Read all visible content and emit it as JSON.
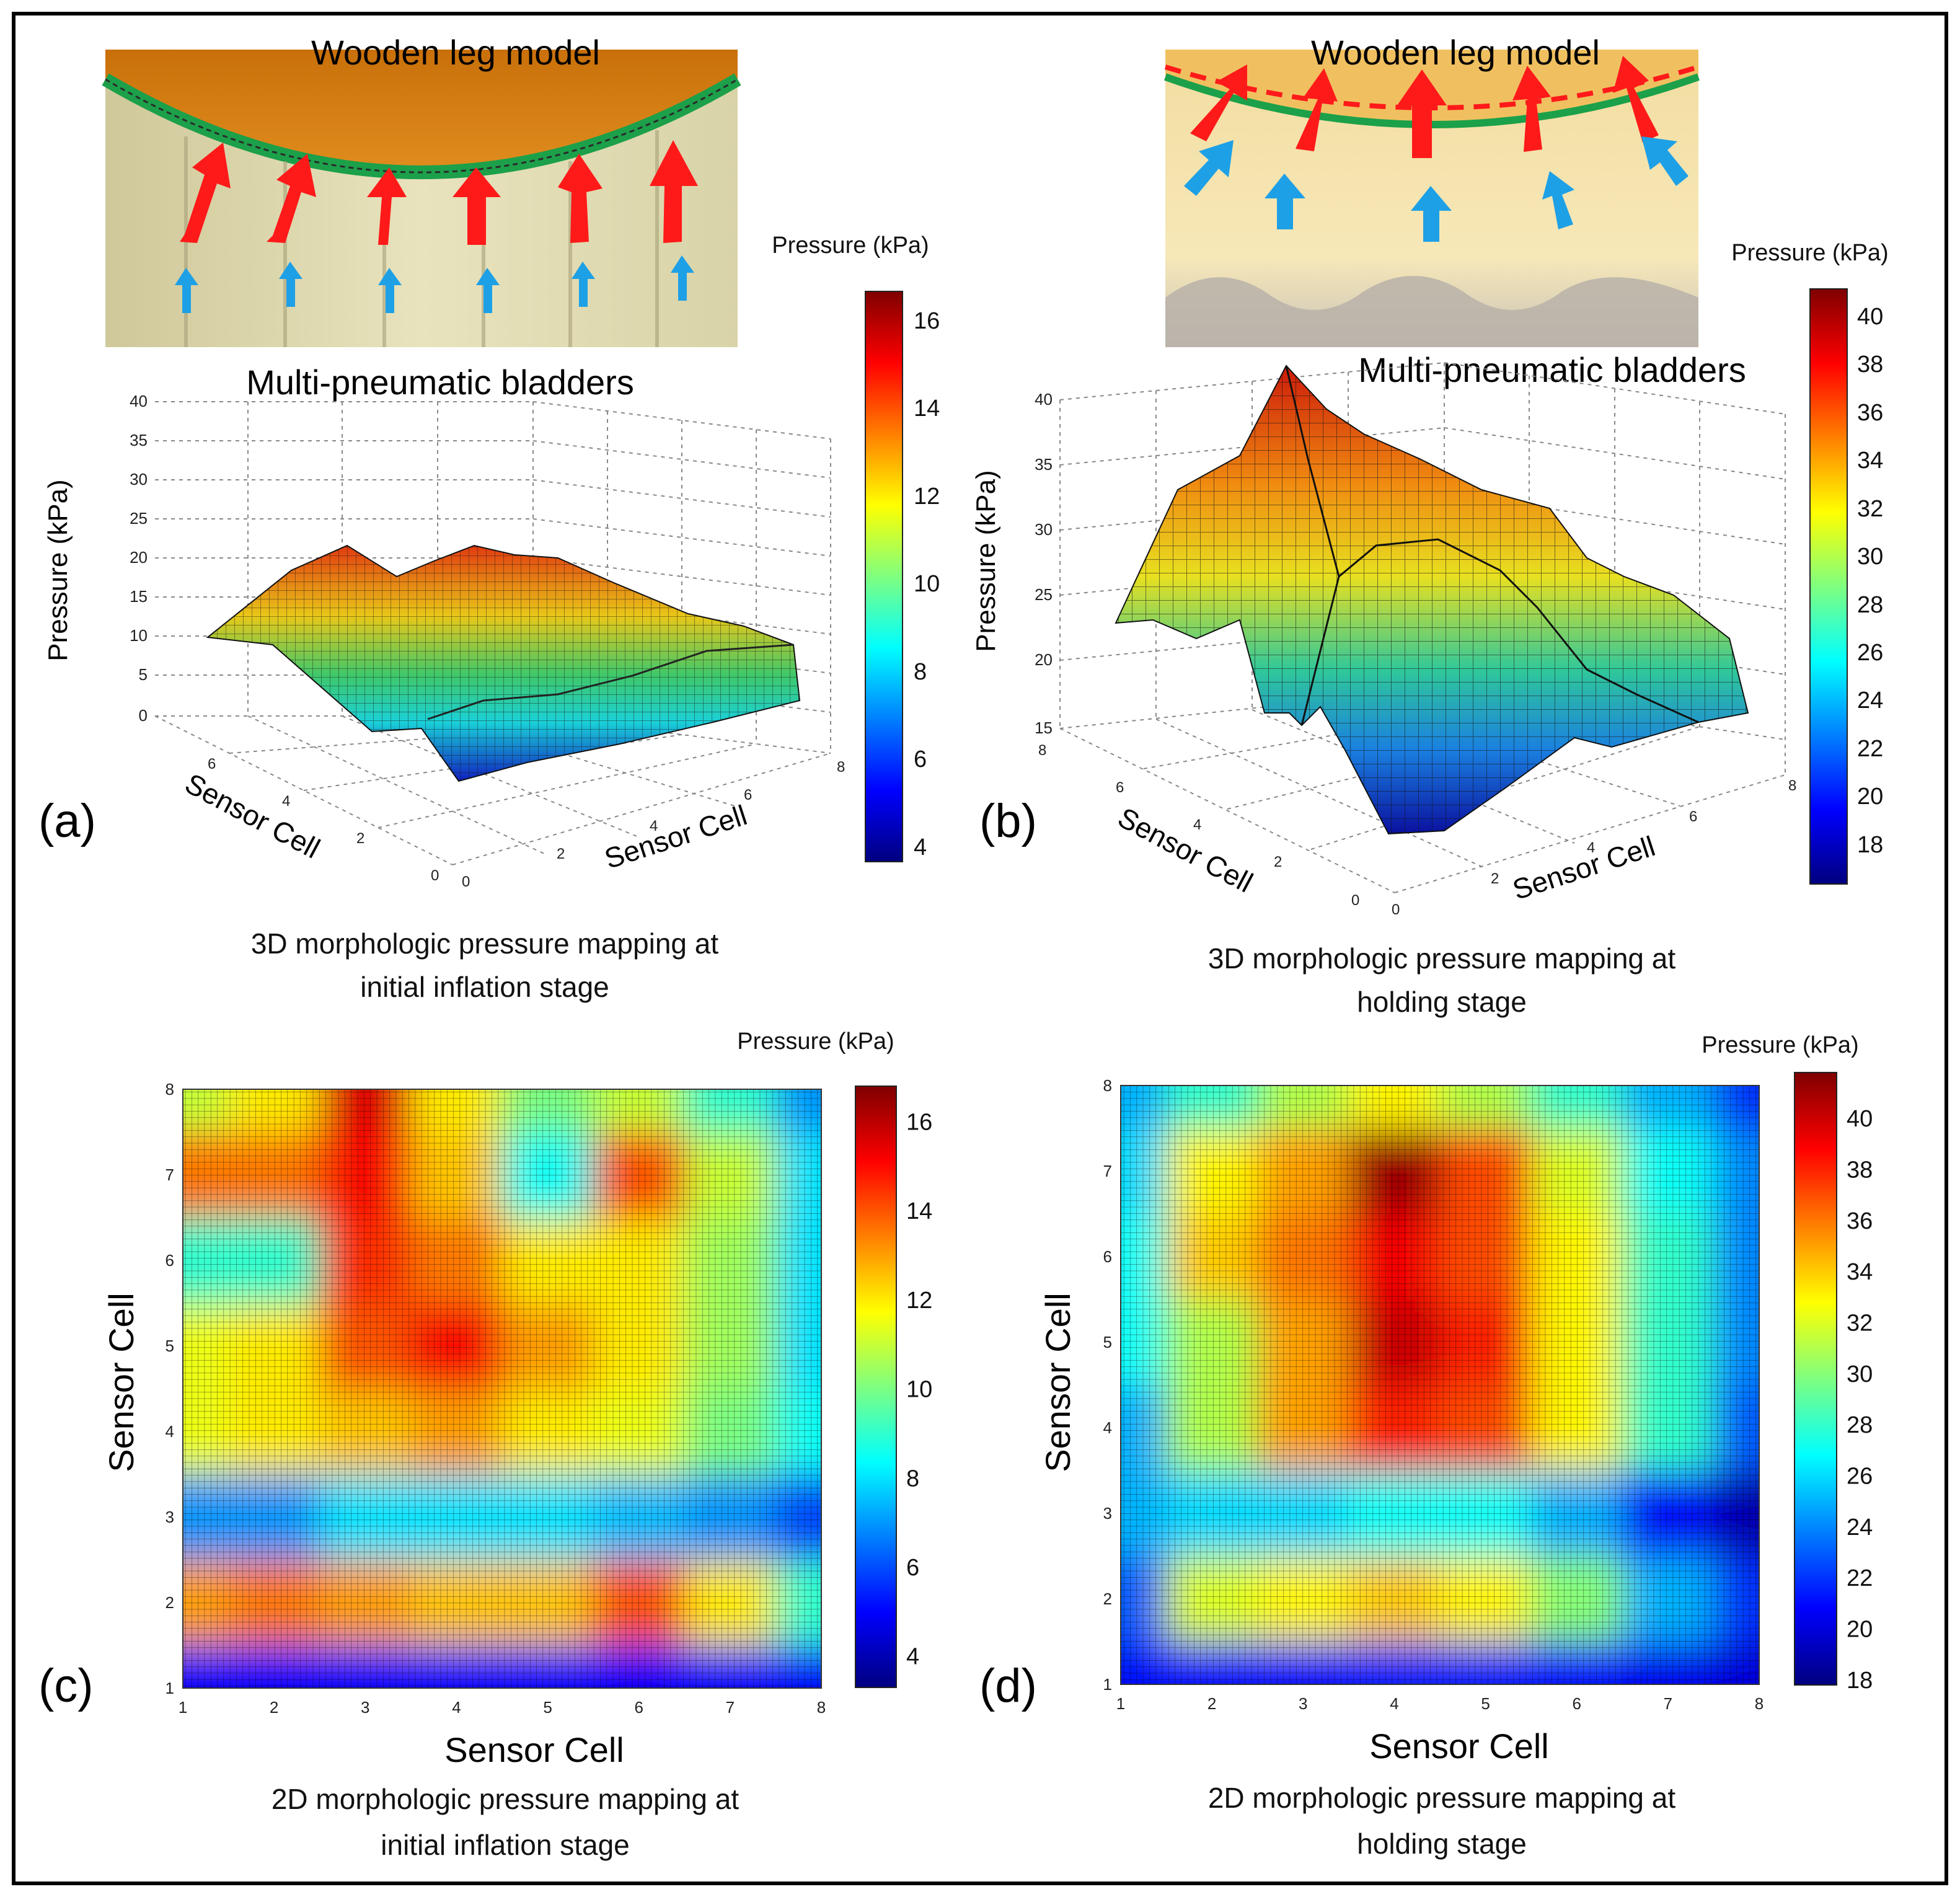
{
  "figure": {
    "panel_labels": [
      "(a)",
      "(b)",
      "(c)",
      "(d)"
    ]
  },
  "photos": {
    "a": {
      "label_top": "Wooden leg model",
      "label_bottom": "Multi-pneumatic bladders"
    },
    "b": {
      "label_top": "Wooden leg model",
      "label_bottom": "Multi-pneumatic bladders"
    }
  },
  "colormap": [
    "#00007f",
    "#0000ff",
    "#007fff",
    "#00ffff",
    "#7fff7f",
    "#ffff00",
    "#ff7f00",
    "#ff0000",
    "#7f0000"
  ],
  "arrow_colors": {
    "red": "#ff1a1a",
    "blue": "#1ea0e6"
  },
  "chart_data": [
    {
      "id": "a",
      "type": "surface3d",
      "title_lines": [
        "3D morphologic pressure mapping at",
        "initial inflation stage"
      ],
      "xlabel": "Sensor Cell",
      "ylabel": "Sensor Cell",
      "zlabel": "Pressure (kPa)",
      "xticks": [
        "0",
        "2",
        "4",
        "6",
        "8"
      ],
      "yticks": [
        "0",
        "2",
        "4",
        "6"
      ],
      "zticks": [
        "0",
        "5",
        "10",
        "15",
        "20",
        "25",
        "30",
        "35",
        "40"
      ],
      "zlim": [
        0,
        40
      ],
      "colorbar": {
        "label": "Pressure (kPa)",
        "ticks": [
          "4",
          "6",
          "8",
          "10",
          "12",
          "14",
          "16"
        ],
        "range": [
          3.5,
          16.5
        ]
      }
    },
    {
      "id": "b",
      "type": "surface3d",
      "title_lines": [
        "3D morphologic pressure mapping at",
        "holding stage"
      ],
      "xlabel": "Sensor Cell",
      "ylabel": "Sensor Cell",
      "zlabel": "Pressure (kPa)",
      "xticks": [
        "0",
        "2",
        "4",
        "6",
        "8"
      ],
      "yticks": [
        "0",
        "2",
        "4",
        "6",
        "8"
      ],
      "zticks": [
        "15",
        "20",
        "25",
        "30",
        "35",
        "40"
      ],
      "zlim": [
        15,
        40
      ],
      "colorbar": {
        "label": "Pressure (kPa)",
        "ticks": [
          "18",
          "20",
          "22",
          "24",
          "26",
          "28",
          "30",
          "32",
          "34",
          "36",
          "38",
          "40"
        ],
        "range": [
          17,
          40.5
        ]
      }
    },
    {
      "id": "c",
      "type": "heatmap",
      "title_lines": [
        "2D morphologic pressure mapping at",
        "initial inflation stage"
      ],
      "xlabel": "Sensor Cell",
      "ylabel": "Sensor Cell",
      "xticks": [
        "1",
        "2",
        "3",
        "4",
        "5",
        "6",
        "7",
        "8"
      ],
      "yticks": [
        "1",
        "2",
        "3",
        "4",
        "5",
        "6",
        "7",
        "8"
      ],
      "colorbar": {
        "label": "Pressure (kPa)",
        "ticks": [
          "4",
          "6",
          "8",
          "10",
          "12",
          "14",
          "16"
        ],
        "range": [
          3.3,
          16.8
        ]
      },
      "values": [
        [
          5,
          5,
          5,
          5,
          5,
          5,
          5,
          5
        ],
        [
          13,
          13.5,
          13,
          12.5,
          12.5,
          14,
          12,
          9
        ],
        [
          7,
          7,
          8,
          8,
          8,
          7.5,
          7,
          6
        ],
        [
          11.5,
          12,
          12.5,
          13,
          12,
          11.5,
          10,
          8.5
        ],
        [
          11.5,
          12,
          14,
          15,
          13,
          12,
          10.5,
          8
        ],
        [
          9,
          9,
          14.5,
          13.5,
          12,
          12,
          10.5,
          8
        ],
        [
          13.5,
          13.5,
          15,
          12.5,
          8.5,
          14,
          11,
          8
        ],
        [
          11,
          12,
          15.5,
          12,
          10,
          11,
          9,
          7
        ]
      ]
    },
    {
      "id": "d",
      "type": "heatmap",
      "title_lines": [
        "2D morphologic pressure mapping at",
        "holding stage"
      ],
      "xlabel": "Sensor Cell",
      "ylabel": "Sensor Cell",
      "xticks": [
        "1",
        "2",
        "3",
        "4",
        "5",
        "6",
        "7",
        "8"
      ],
      "yticks": [
        "1",
        "2",
        "3",
        "4",
        "5",
        "6",
        "7",
        "8"
      ],
      "colorbar": {
        "label": "Pressure (kPa)",
        "ticks": [
          "18",
          "20",
          "22",
          "24",
          "26",
          "28",
          "30",
          "32",
          "34",
          "36",
          "38",
          "40"
        ],
        "range": [
          17.8,
          41.8
        ]
      },
      "values": [
        [
          21,
          21,
          21,
          21.5,
          21.5,
          21,
          20.5,
          20
        ],
        [
          23,
          32,
          33,
          34,
          33,
          30,
          25,
          22
        ],
        [
          25,
          26,
          26,
          27,
          27,
          25,
          21,
          19
        ],
        [
          25,
          31,
          35,
          38,
          37,
          33,
          28,
          23
        ],
        [
          27,
          31,
          35,
          40,
          38,
          33,
          28,
          24
        ],
        [
          27,
          34,
          36,
          39,
          37,
          33,
          28,
          24
        ],
        [
          26,
          33,
          35,
          41,
          37,
          32,
          27,
          24
        ],
        [
          25,
          28,
          31,
          33,
          31,
          28,
          25,
          22
        ]
      ]
    }
  ]
}
